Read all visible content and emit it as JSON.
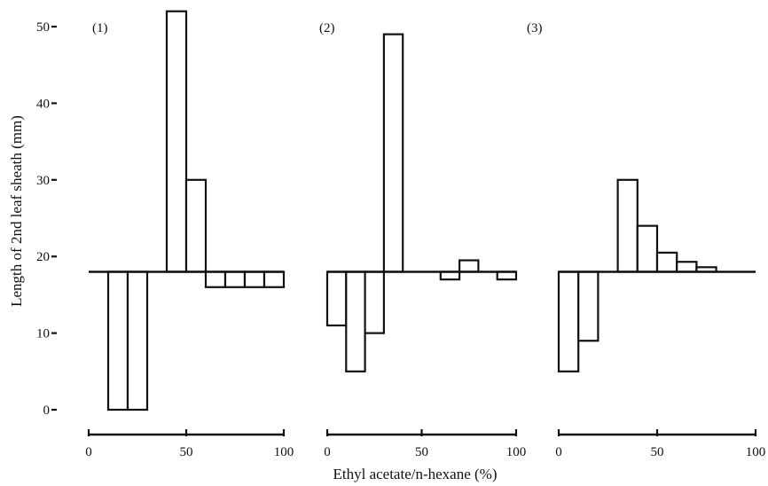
{
  "chart_data": {
    "type": "bar",
    "ylabel": "Length of  2nd leaf sheath  (mm)",
    "xlabel": "Ethyl acetate/n-hexane (%)",
    "ylim": [
      0,
      50
    ],
    "yticks": [
      0,
      10,
      20,
      30,
      40,
      50
    ],
    "xticks": [
      0,
      50,
      100
    ],
    "baseline": 18,
    "panels": [
      {
        "label": "(1)",
        "bins": [
          {
            "x0": 10,
            "x1": 20,
            "value": 0
          },
          {
            "x0": 20,
            "x1": 30,
            "value": 0
          },
          {
            "x0": 40,
            "x1": 50,
            "value": 52
          },
          {
            "x0": 50,
            "x1": 60,
            "value": 30
          },
          {
            "x0": 60,
            "x1": 70,
            "value": 16
          },
          {
            "x0": 70,
            "x1": 80,
            "value": 16
          },
          {
            "x0": 80,
            "x1": 90,
            "value": 16
          },
          {
            "x0": 90,
            "x1": 100,
            "value": 16
          }
        ]
      },
      {
        "label": "(2)",
        "bins": [
          {
            "x0": 0,
            "x1": 10,
            "value": 11
          },
          {
            "x0": 10,
            "x1": 20,
            "value": 5
          },
          {
            "x0": 20,
            "x1": 30,
            "value": 10
          },
          {
            "x0": 30,
            "x1": 40,
            "value": 49
          },
          {
            "x0": 60,
            "x1": 70,
            "value": 17
          },
          {
            "x0": 70,
            "x1": 80,
            "value": 19.5
          },
          {
            "x0": 90,
            "x1": 100,
            "value": 17
          }
        ]
      },
      {
        "label": "(3)",
        "bins": [
          {
            "x0": 0,
            "x1": 10,
            "value": 5
          },
          {
            "x0": 10,
            "x1": 20,
            "value": 9
          },
          {
            "x0": 30,
            "x1": 40,
            "value": 30
          },
          {
            "x0": 40,
            "x1": 50,
            "value": 24
          },
          {
            "x0": 50,
            "x1": 60,
            "value": 20.5
          },
          {
            "x0": 60,
            "x1": 70,
            "value": 19.3
          },
          {
            "x0": 70,
            "x1": 80,
            "value": 18.6
          }
        ]
      }
    ]
  }
}
